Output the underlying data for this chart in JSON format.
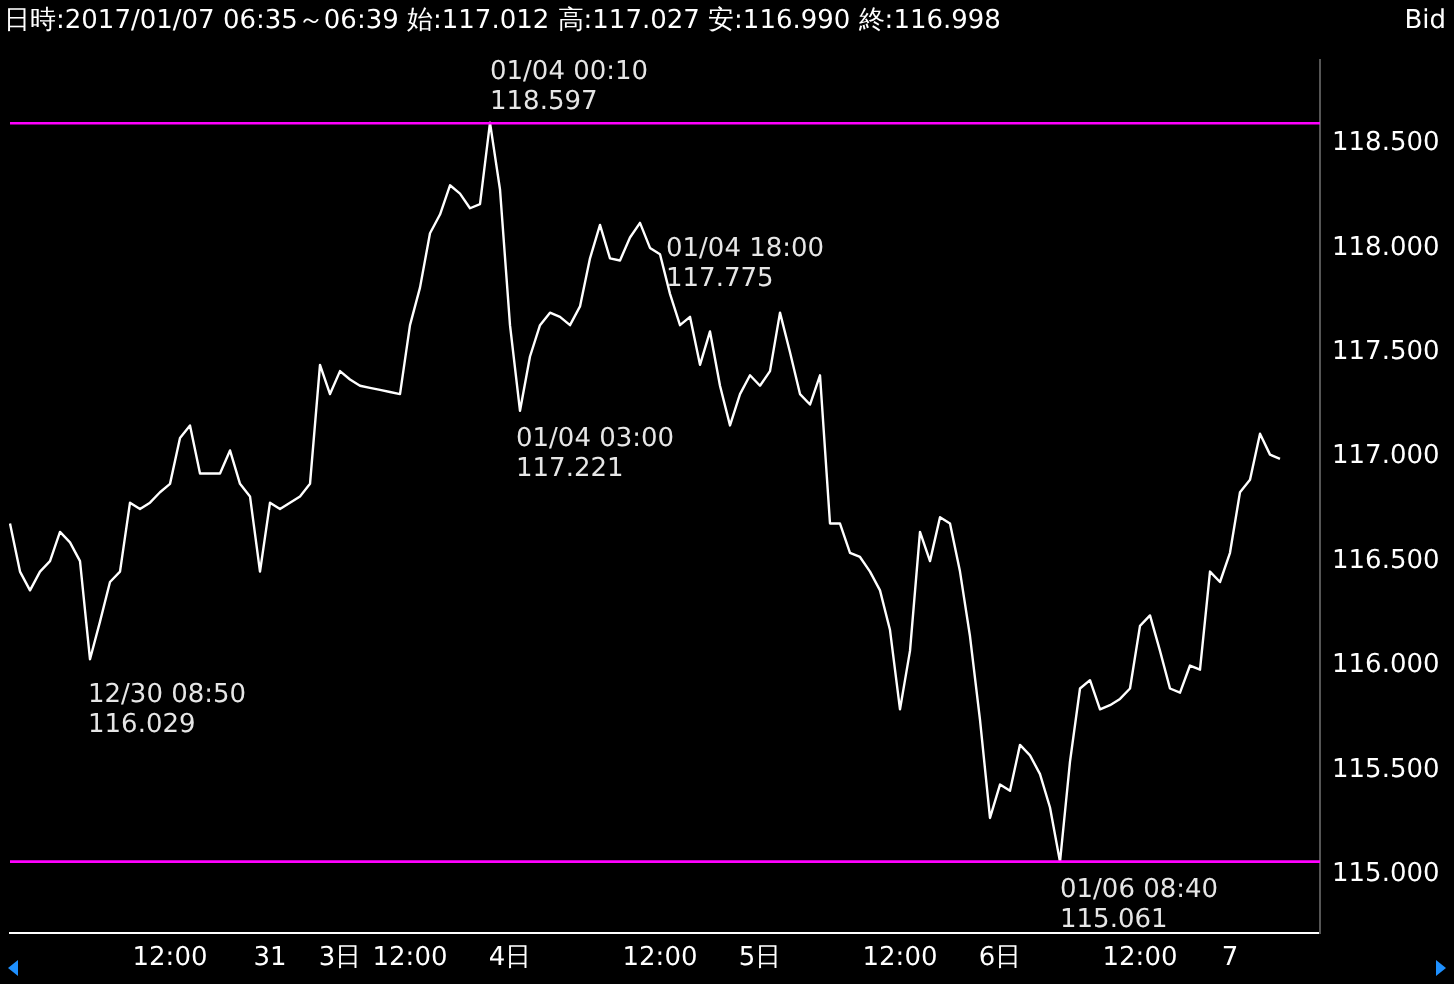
{
  "chart_data": {
    "type": "line",
    "title": "日時:2017/01/07 06:35～06:39 始:117.012 高:117.027 安:116.990 終:116.998",
    "subtitle": "Bid",
    "categories": [
      null,
      null,
      null,
      null,
      null,
      null,
      null,
      null,
      null,
      null,
      null,
      null,
      null,
      null,
      null,
      null,
      "12:00",
      null,
      null,
      null,
      null,
      null,
      null,
      null,
      null,
      null,
      "31",
      null,
      null,
      null,
      null,
      null,
      null,
      "3日",
      null,
      null,
      null,
      null,
      null,
      null,
      "12:00",
      null,
      null,
      null,
      null,
      null,
      null,
      null,
      null,
      null,
      "4日",
      null,
      null,
      null,
      null,
      null,
      null,
      null,
      null,
      null,
      null,
      null,
      null,
      null,
      null,
      "12:00",
      null,
      null,
      null,
      null,
      null,
      null,
      null,
      null,
      null,
      "5日",
      null,
      null,
      null,
      null,
      null,
      null,
      null,
      null,
      null,
      null,
      null,
      null,
      null,
      "12:00",
      null,
      null,
      null,
      null,
      null,
      null,
      null,
      null,
      null,
      "6日",
      null,
      null,
      null,
      null,
      null,
      null,
      null,
      null,
      null,
      null,
      null,
      null,
      null,
      "12:00",
      null,
      null,
      null,
      null,
      null,
      null,
      null,
      null,
      "7",
      null,
      null,
      null,
      null,
      null,
      null,
      null,
      null,
      null
    ],
    "series": [
      {
        "color": "#ffffff",
        "values": [
          116.68,
          116.45,
          116.36,
          116.45,
          116.5,
          116.64,
          116.59,
          116.5,
          116.03,
          116.21,
          116.4,
          116.45,
          116.78,
          116.75,
          116.78,
          116.83,
          116.87,
          117.09,
          117.15,
          116.92,
          116.92,
          116.92,
          117.03,
          116.87,
          116.81,
          116.45,
          116.78,
          116.75,
          116.78,
          116.81,
          116.87,
          117.44,
          117.3,
          117.41,
          117.37,
          117.34,
          117.33,
          117.32,
          117.31,
          117.3,
          117.63,
          117.81,
          118.07,
          118.16,
          118.3,
          118.26,
          118.19,
          118.21,
          118.6,
          118.28,
          117.63,
          117.22,
          117.48,
          117.63,
          117.69,
          117.67,
          117.63,
          117.72,
          117.95,
          118.11,
          117.95,
          117.94,
          118.05,
          118.12,
          118.0,
          117.97,
          117.78,
          117.63,
          117.67,
          117.44,
          117.6,
          117.34,
          117.15,
          117.3,
          117.39,
          117.34,
          117.41,
          117.69,
          117.5,
          117.3,
          117.25,
          117.39,
          116.68,
          116.68,
          116.54,
          116.52,
          116.45,
          116.36,
          116.17,
          115.79,
          116.07,
          116.64,
          116.5,
          116.71,
          116.68,
          116.45,
          116.14,
          115.74,
          115.27,
          115.43,
          115.4,
          115.62,
          115.57,
          115.48,
          115.32,
          115.06,
          115.54,
          115.89,
          115.93,
          115.79,
          115.81,
          115.84,
          115.89,
          116.19,
          116.24,
          116.07,
          115.89,
          115.87,
          116.0,
          115.98,
          116.45,
          116.4,
          116.54,
          116.83,
          116.89,
          117.11,
          117.01,
          116.99,
          null,
          null,
          null,
          null
        ]
      }
    ],
    "ylim": [
      114.72,
      118.9
    ],
    "yticks": [
      {
        "value": 115,
        "label": "115.000"
      },
      {
        "value": 115.5,
        "label": "115.500"
      },
      {
        "value": 116,
        "label": "116.000"
      },
      {
        "value": 116.5,
        "label": "116.500"
      },
      {
        "value": 117,
        "label": "117.000"
      },
      {
        "value": 117.5,
        "label": "117.500"
      },
      {
        "value": 118,
        "label": "118.000"
      },
      {
        "value": 118.5,
        "label": "118.500"
      }
    ],
    "ref_lines": [
      {
        "axis": "y",
        "value": 118.597,
        "color": "#ff00ff"
      },
      {
        "axis": "y",
        "value": 115.061,
        "color": "#ff00ff"
      }
    ],
    "annotations": [
      {
        "text": "01/04 00:10\n118.597",
        "y": 118.597
      },
      "12/30 08:50\n116.029",
      "01/04 03:00\n117.221",
      "01/04 18:00\n117.775",
      {
        "text": "01/06 08:40\n115.061",
        "y": 115.061
      }
    ],
    "grid": false,
    "legend": false,
    "marker": "none",
    "line_style": "solid"
  }
}
